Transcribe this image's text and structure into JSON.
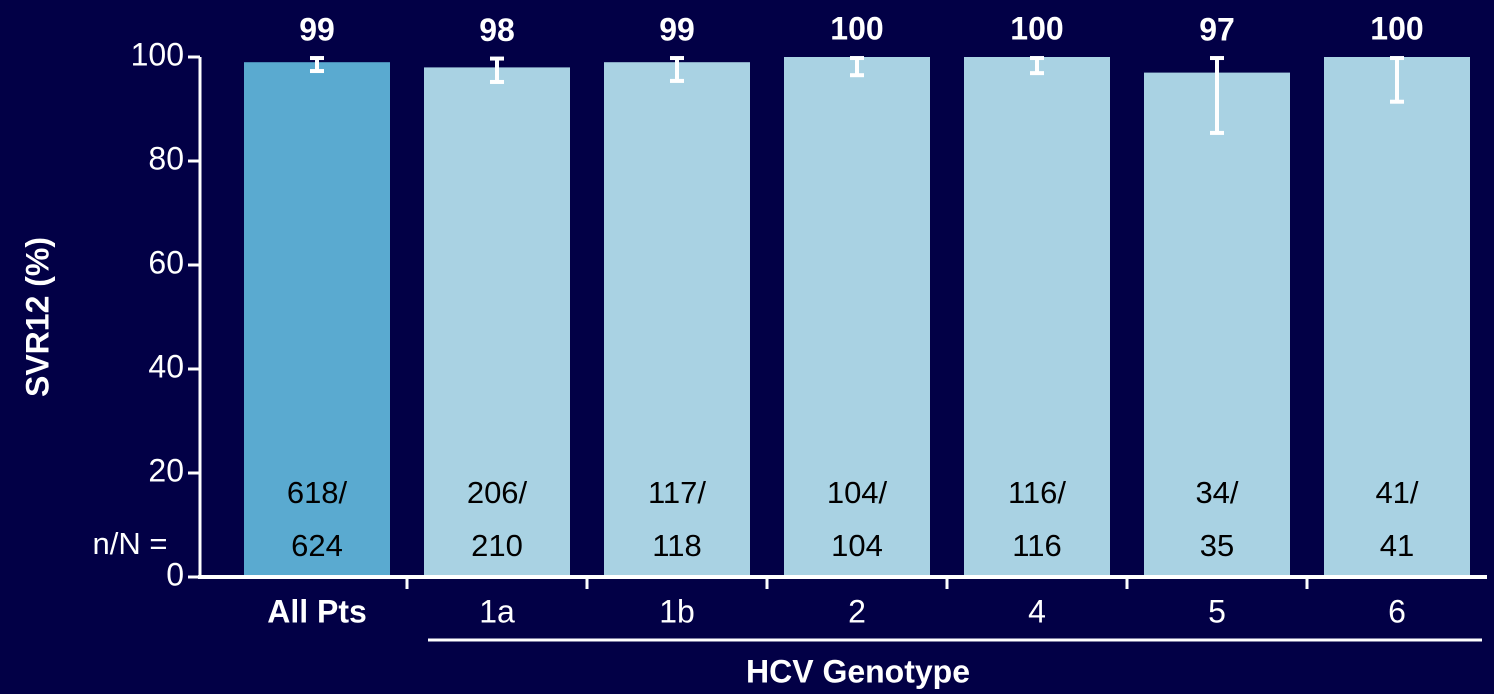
{
  "chart_data": {
    "type": "bar",
    "ylabel": "SVR12 (%)",
    "xlabel": "HCV Genotype",
    "categories": [
      "All Pts",
      "1a",
      "1b",
      "2",
      "4",
      "5",
      "6"
    ],
    "values": [
      99,
      98,
      99,
      100,
      100,
      97,
      100
    ],
    "ci_low": [
      97.3,
      95.2,
      95.4,
      96.5,
      96.9,
      85.4,
      91.4
    ],
    "ci_high": [
      99.8,
      99.7,
      99.8,
      99.8,
      99.8,
      99.8,
      99.8
    ],
    "colors": [
      "#5aaad0",
      "#a9d2e3",
      "#a9d2e3",
      "#a9d2e3",
      "#a9d2e3",
      "#a9d2e3",
      "#a9d2e3"
    ],
    "count_label": "n/N =",
    "n_labels": [
      "618/",
      "206/",
      "117/",
      "104/",
      "116/",
      "34/",
      "41/"
    ],
    "N_labels": [
      "624",
      "210",
      "118",
      "104",
      "116",
      "35",
      "41"
    ],
    "ylim": [
      0,
      100
    ],
    "yticks": [
      0,
      20,
      40,
      60,
      80,
      100
    ]
  }
}
